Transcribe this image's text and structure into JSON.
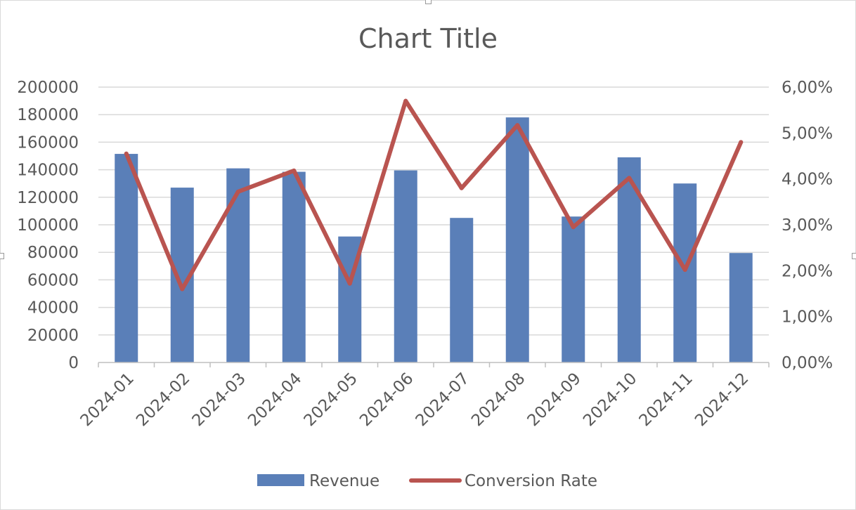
{
  "chart_data": {
    "type": "bar",
    "title": "Chart Title",
    "categories": [
      "2024-01",
      "2024-02",
      "2024-03",
      "2024-04",
      "2024-05",
      "2024-06",
      "2024-07",
      "2024-08",
      "2024-09",
      "2024-10",
      "2024-11",
      "2024-12"
    ],
    "series": [
      {
        "name": "Revenue",
        "type": "bar",
        "axis": "left",
        "color": "#5a7fb8",
        "values": [
          151500,
          127000,
          141000,
          138500,
          91500,
          139500,
          105000,
          178000,
          106000,
          149000,
          130000,
          79500
        ]
      },
      {
        "name": "Conversion Rate",
        "type": "line",
        "axis": "right",
        "color": "#b95450",
        "values": [
          0.0455,
          0.016,
          0.0372,
          0.0418,
          0.0172,
          0.057,
          0.038,
          0.0517,
          0.0295,
          0.0402,
          0.0202,
          0.048
        ]
      }
    ],
    "y_left": {
      "min": 0,
      "max": 200000,
      "tick_labels": [
        "0",
        "20000",
        "40000",
        "60000",
        "80000",
        "100000",
        "120000",
        "140000",
        "160000",
        "180000",
        "200000"
      ]
    },
    "y_right": {
      "min": 0,
      "max": 0.06,
      "tick_labels": [
        "0,00%",
        "1,00%",
        "2,00%",
        "3,00%",
        "4,00%",
        "5,00%",
        "6,00%"
      ]
    },
    "grid": true,
    "legend": "bottom"
  }
}
